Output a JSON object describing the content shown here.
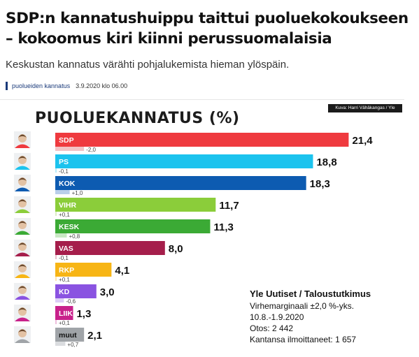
{
  "article": {
    "headline": "SDP:n kannatushuippu taittui puoluekokoukseen – kokoomus kiri kiinni perussuomalaisia",
    "subheadline": "Keskustan kannatus värähti pohjalukemista hieman ylöspäin.",
    "tag": "puolueiden kannatus",
    "timestamp": "3.9.2020 klo 06.00"
  },
  "graphic": {
    "credit": "Kuva: Harri Vähäkangas / Yle",
    "source_title": "Yle Uutiset / Taloustutkimus",
    "source_lines": [
      "Virhemarginaali ±2,0 %-yks.",
      "10.8.-1.9.2020",
      "Otos: 2 442",
      "Kantansa ilmoittaneet: 1 657"
    ]
  },
  "chart_data": {
    "type": "bar",
    "orientation": "horizontal",
    "title": "PUOLUEKANNATUS (%)",
    "categories": [
      "SDP",
      "PS",
      "KOK",
      "VIHR",
      "KESK",
      "VAS",
      "RKP",
      "KD",
      "LIIK",
      "muut"
    ],
    "values": [
      21.4,
      18.8,
      18.3,
      11.7,
      11.3,
      8.0,
      4.1,
      3.0,
      1.3,
      2.1
    ],
    "value_labels": [
      "21,4",
      "18,8",
      "18,3",
      "11,7",
      "11,3",
      "8,0",
      "4,1",
      "3,0",
      "1,3",
      "2,1"
    ],
    "changes": [
      -2.0,
      -0.1,
      1.0,
      0.1,
      0.8,
      -0.1,
      0.1,
      -0.6,
      0.1,
      0.7
    ],
    "change_labels": [
      "-2,0",
      "-0,1",
      "+1,0",
      "+0,1",
      "+0,8",
      "-0,1",
      "+0,1",
      "-0,6",
      "+0,1",
      "+0,7"
    ],
    "colors": [
      "#ef3a3f",
      "#1cc3ee",
      "#0d5bb1",
      "#8bcd3a",
      "#3baa35",
      "#a51e4b",
      "#f7b515",
      "#8a53e1",
      "#c8218b",
      "#a0a4a8"
    ],
    "change_bar_colors": [
      "#f3c3c6",
      "#b9ecf8",
      "#b9cfea",
      "#dbefc4",
      "#c9e8c4",
      "#e9c0cd",
      "#fde6b4",
      "#dccdf6",
      "#efc0de",
      "#dadcdf"
    ],
    "label_colors": [
      "#ffffff",
      "#ffffff",
      "#ffffff",
      "#ffffff",
      "#ffffff",
      "#ffffff",
      "#ffffff",
      "#ffffff",
      "#ffffff",
      "#111111"
    ],
    "icons": [
      "portrait-icon-sdp",
      "portrait-icon-ps",
      "portrait-icon-kok",
      "portrait-icon-vihr",
      "portrait-icon-kesk",
      "portrait-icon-vas",
      "portrait-icon-rkp",
      "portrait-icon-kd",
      "portrait-icon-liik",
      "portrait-icon-muut"
    ]
  }
}
